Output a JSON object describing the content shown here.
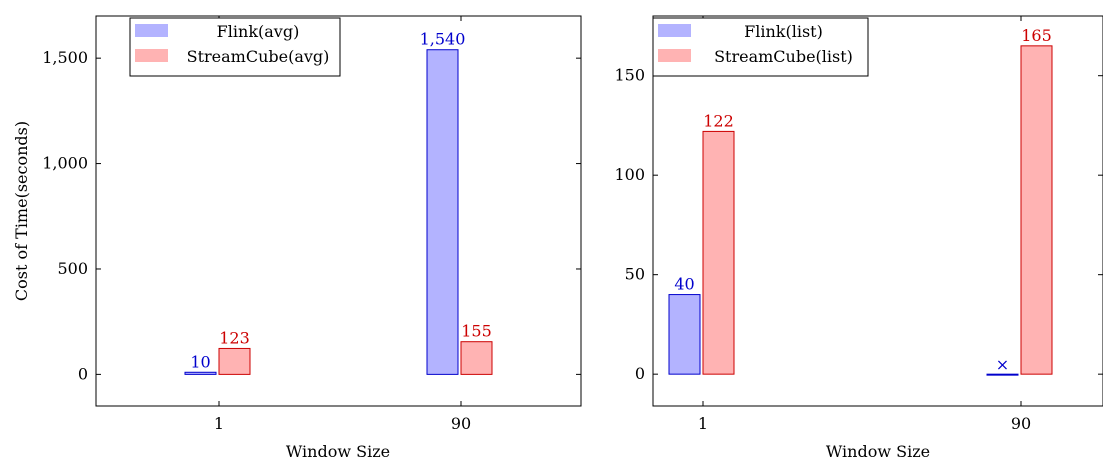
{
  "chart_data": [
    {
      "type": "bar",
      "categories": [
        "1",
        "90"
      ],
      "series": [
        {
          "name": "Flink(avg)",
          "values": [
            10,
            1540
          ],
          "value_labels": [
            "10",
            "1,540"
          ],
          "color": "#0000cc",
          "fill": "#b3b3ff"
        },
        {
          "name": "StreamCube(avg)",
          "values": [
            123,
            155
          ],
          "value_labels": [
            "123",
            "155"
          ],
          "color": "#cc0000",
          "fill": "#ffb3b3"
        }
      ],
      "xlabel": "Window Size",
      "ylabel": "Cost of Time(seconds)",
      "ylim": [
        -150,
        1700
      ],
      "yticks": [
        0,
        500,
        1000,
        1500
      ],
      "ytick_labels": [
        "0",
        "500",
        "1,000",
        "1,500"
      ],
      "legend_position": "top-left"
    },
    {
      "type": "bar",
      "categories": [
        "1",
        "90"
      ],
      "series": [
        {
          "name": "Flink(list)",
          "values": [
            40,
            0
          ],
          "value_labels": [
            "40",
            "×"
          ],
          "color": "#0000cc",
          "fill": "#b3b3ff"
        },
        {
          "name": "StreamCube(list)",
          "values": [
            122,
            165
          ],
          "value_labels": [
            "122",
            "165"
          ],
          "color": "#cc0000",
          "fill": "#ffb3b3"
        }
      ],
      "xlabel": "Window Size",
      "ylabel": "",
      "ylim": [
        -16,
        180
      ],
      "yticks": [
        0,
        50,
        100,
        150
      ],
      "ytick_labels": [
        "0",
        "50",
        "100",
        "150"
      ],
      "legend_position": "top-left"
    }
  ]
}
